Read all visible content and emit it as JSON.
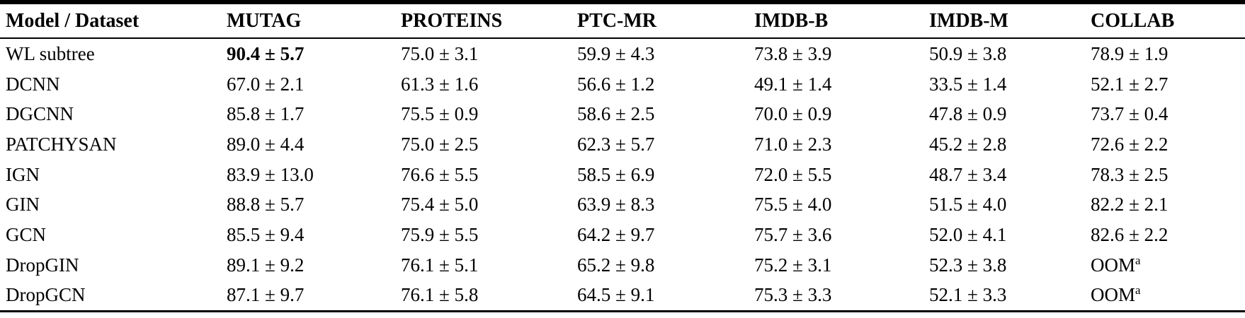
{
  "table": {
    "columns": [
      "Model / Dataset",
      "MUTAG",
      "PROTEINS",
      "PTC-MR",
      "IMDB-B",
      "IMDB-M",
      "COLLAB"
    ],
    "rows": [
      {
        "model": "WL subtree",
        "cells": [
          {
            "t": "90.4 ± 5.7",
            "b": true
          },
          {
            "t": "75.0 ± 3.1"
          },
          {
            "t": "59.9 ± 4.3"
          },
          {
            "t": "73.8 ± 3.9"
          },
          {
            "t": "50.9 ± 3.8"
          },
          {
            "t": "78.9 ± 1.9"
          }
        ]
      },
      {
        "model": "DCNN",
        "cells": [
          {
            "t": "67.0 ± 2.1"
          },
          {
            "t": "61.3 ± 1.6"
          },
          {
            "t": "56.6 ± 1.2"
          },
          {
            "t": "49.1 ± 1.4"
          },
          {
            "t": "33.5 ± 1.4"
          },
          {
            "t": "52.1 ± 2.7"
          }
        ]
      },
      {
        "model": "DGCNN",
        "cells": [
          {
            "t": "85.8 ± 1.7"
          },
          {
            "t": "75.5 ± 0.9"
          },
          {
            "t": "58.6 ± 2.5"
          },
          {
            "t": "70.0 ± 0.9"
          },
          {
            "t": "47.8 ± 0.9"
          },
          {
            "t": "73.7 ± 0.4"
          }
        ]
      },
      {
        "model": "PATCHYSAN",
        "cells": [
          {
            "t": "89.0 ± 4.4"
          },
          {
            "t": "75.0 ± 2.5"
          },
          {
            "t": "62.3 ± 5.7"
          },
          {
            "t": "71.0 ± 2.3"
          },
          {
            "t": "45.2 ± 2.8"
          },
          {
            "t": "72.6 ± 2.2"
          }
        ]
      },
      {
        "model": "IGN",
        "cells": [
          {
            "t": "83.9 ± 13.0"
          },
          {
            "t": "76.6 ± 5.5"
          },
          {
            "t": "58.5 ± 6.9"
          },
          {
            "t": "72.0 ± 5.5"
          },
          {
            "t": "48.7 ± 3.4"
          },
          {
            "t": "78.3 ± 2.5"
          }
        ]
      },
      {
        "model": "GIN",
        "cells": [
          {
            "t": "88.8 ± 5.7"
          },
          {
            "t": "75.4 ± 5.0"
          },
          {
            "t": "63.9 ± 8.3"
          },
          {
            "t": "75.5 ± 4.0"
          },
          {
            "t": "51.5 ± 4.0"
          },
          {
            "t": "82.2 ± 2.1"
          }
        ]
      },
      {
        "model": "GCN",
        "cells": [
          {
            "t": "85.5 ± 9.4"
          },
          {
            "t": "75.9 ± 5.5"
          },
          {
            "t": "64.2 ± 9.7"
          },
          {
            "t": "75.7 ± 3.6"
          },
          {
            "t": "52.0 ± 4.1"
          },
          {
            "t": "82.6 ± 2.2"
          }
        ]
      },
      {
        "model": "DropGIN",
        "cells": [
          {
            "t": "89.1 ± 9.2"
          },
          {
            "t": "76.1 ± 5.1"
          },
          {
            "t": "65.2 ± 9.8"
          },
          {
            "t": "75.2 ± 3.1"
          },
          {
            "t": "52.3 ± 3.8"
          },
          {
            "t": "OOM",
            "sup": "a"
          }
        ]
      },
      {
        "model": "DropGCN",
        "cells": [
          {
            "t": "87.1 ± 9.7"
          },
          {
            "t": "76.1 ± 5.8"
          },
          {
            "t": "64.5 ± 9.1"
          },
          {
            "t": "75.3 ± 3.3"
          },
          {
            "t": "52.1 ± 3.3"
          },
          {
            "t": "OOM",
            "sup": "a"
          }
        ]
      }
    ]
  }
}
